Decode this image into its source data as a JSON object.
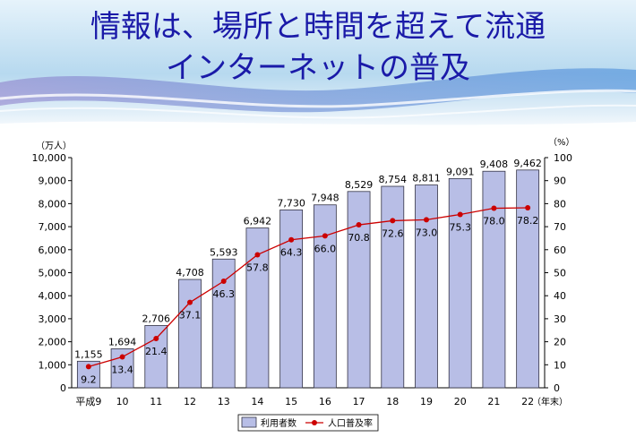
{
  "slide": {
    "title_line1": "情報は、場所と時間を超えて流通",
    "title_line2": "インターネットの普及"
  },
  "chart_data": {
    "type": "bar",
    "categories": [
      "平成9",
      "10",
      "11",
      "12",
      "13",
      "14",
      "15",
      "16",
      "17",
      "18",
      "19",
      "20",
      "21",
      "22"
    ],
    "x_unit": "（年末）",
    "series": [
      {
        "name": "利用者数",
        "type": "bar",
        "axis": "left",
        "values": [
          1155,
          1694,
          2706,
          4708,
          5593,
          6942,
          7730,
          7948,
          8529,
          8754,
          8811,
          9091,
          9408,
          9462
        ],
        "labels": [
          "1,155",
          "1,694",
          "2,706",
          "4,708",
          "5,593",
          "6,942",
          "7,730",
          "7,948",
          "8,529",
          "8,754",
          "8,811",
          "9,091",
          "9,408",
          "9,462"
        ],
        "color": "#b8bee6"
      },
      {
        "name": "人口普及率",
        "type": "line",
        "axis": "right",
        "values": [
          9.2,
          13.4,
          21.4,
          37.1,
          46.3,
          57.8,
          64.3,
          66.0,
          70.8,
          72.6,
          73.0,
          75.3,
          78.0,
          78.2
        ],
        "labels": [
          "9.2",
          "13.4",
          "21.4",
          "37.1",
          "46.3",
          "57.8",
          "64.3",
          "66.0",
          "70.8",
          "72.6",
          "73.0",
          "75.3",
          "78.0",
          "78.2"
        ],
        "color": "#cc0000"
      }
    ],
    "y_left": {
      "unit": "（万人）",
      "ylim": [
        0,
        10000
      ],
      "ticks": [
        0,
        1000,
        2000,
        3000,
        4000,
        5000,
        6000,
        7000,
        8000,
        9000,
        10000
      ],
      "tick_labels": [
        "0",
        "1,000",
        "2,000",
        "3,000",
        "4,000",
        "5,000",
        "6,000",
        "7,000",
        "8,000",
        "9,000",
        "10,000"
      ]
    },
    "y_right": {
      "unit": "（%）",
      "ylim": [
        0,
        100
      ],
      "ticks": [
        0,
        10,
        20,
        30,
        40,
        50,
        60,
        70,
        80,
        90,
        100
      ],
      "tick_labels": [
        "0",
        "10",
        "20",
        "30",
        "40",
        "50",
        "60",
        "70",
        "80",
        "90",
        "100"
      ]
    },
    "grid": false,
    "legend_position": "bottom-center",
    "colors": {
      "bar_fill": "#b8bee6",
      "bar_stroke": "#333344",
      "line": "#cc0000",
      "title": "#1a1aa8"
    }
  }
}
